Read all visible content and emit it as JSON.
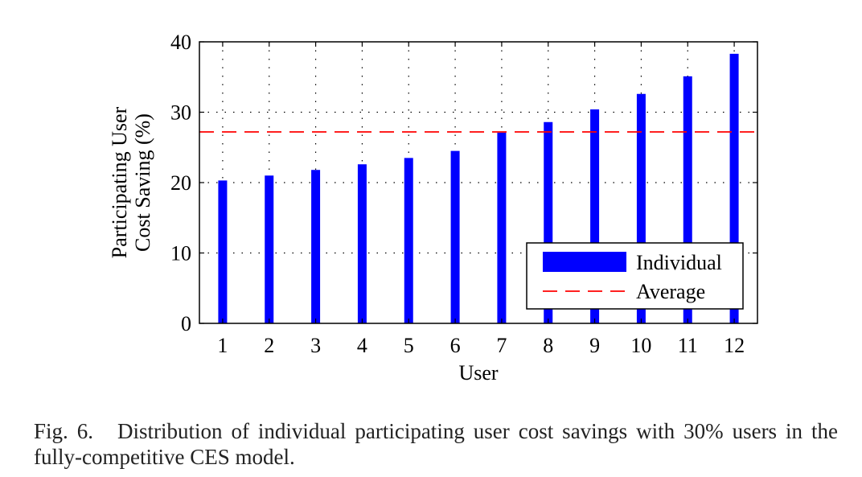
{
  "chart_data": {
    "type": "bar",
    "categories": [
      "1",
      "2",
      "3",
      "4",
      "5",
      "6",
      "7",
      "8",
      "9",
      "10",
      "11",
      "12"
    ],
    "series": [
      {
        "name": "Individual",
        "type": "bar",
        "color": "#0000ff",
        "values": [
          20.3,
          21.0,
          21.8,
          22.6,
          23.5,
          24.5,
          27.1,
          28.6,
          30.4,
          32.6,
          35.1,
          38.3
        ]
      },
      {
        "name": "Average",
        "type": "hline",
        "color": "#ff0000",
        "style": "dashed",
        "value": 27.2
      }
    ],
    "xlabel": "User",
    "ylabel_lines": [
      "Participating User",
      "Cost Saving (%)"
    ],
    "ylim": [
      0,
      40
    ],
    "yticks": [
      0,
      10,
      20,
      30,
      40
    ],
    "grid": true,
    "legend_position": "bottom-right"
  },
  "caption": {
    "label": "Fig. 6.",
    "text": "Distribution of individual participating user cost savings with 30% users in the fully-competitive CES model."
  }
}
